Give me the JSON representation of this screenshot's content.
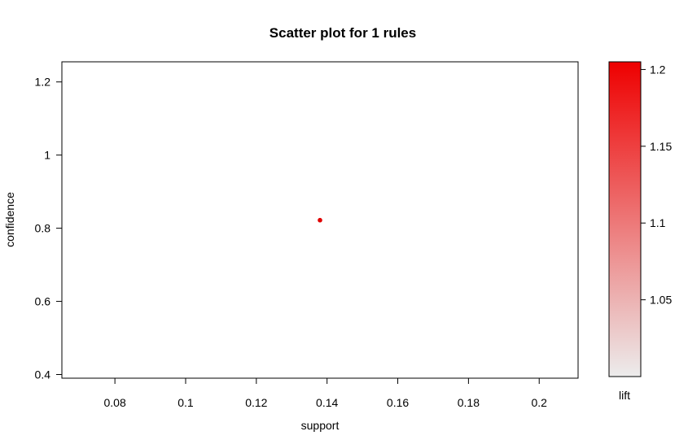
{
  "chart_data": {
    "type": "scatter",
    "title": "Scatter plot for 1 rules",
    "xlabel": "support",
    "ylabel": "confidence",
    "xlim": [
      0.065,
      0.211
    ],
    "ylim": [
      0.39,
      1.255
    ],
    "x_ticks": [
      {
        "value": 0.08,
        "label": "0.08"
      },
      {
        "value": 0.1,
        "label": "0.1"
      },
      {
        "value": 0.12,
        "label": "0.12"
      },
      {
        "value": 0.14,
        "label": "0.14"
      },
      {
        "value": 0.16,
        "label": "0.16"
      },
      {
        "value": 0.18,
        "label": "0.18"
      },
      {
        "value": 0.2,
        "label": "0.2"
      }
    ],
    "y_ticks": [
      {
        "value": 0.4,
        "label": "0.4"
      },
      {
        "value": 0.6,
        "label": "0.6"
      },
      {
        "value": 0.8,
        "label": "0.8"
      },
      {
        "value": 1.0,
        "label": "1"
      },
      {
        "value": 1.2,
        "label": "1.2"
      }
    ],
    "points": [
      {
        "x": 0.138,
        "y": 0.822,
        "lift": 1.2
      }
    ],
    "point_color": "#e00000",
    "grid": false,
    "legend": {
      "label": "lift",
      "type": "colorbar",
      "range": [
        1.0,
        1.205
      ],
      "color_low": "#ececec",
      "color_high": "#ee0000",
      "ticks": [
        {
          "value": 1.05,
          "label": "1.05"
        },
        {
          "value": 1.1,
          "label": "1.1"
        },
        {
          "value": 1.15,
          "label": "1.15"
        },
        {
          "value": 1.2,
          "label": "1.2"
        }
      ],
      "placement": "right"
    }
  }
}
